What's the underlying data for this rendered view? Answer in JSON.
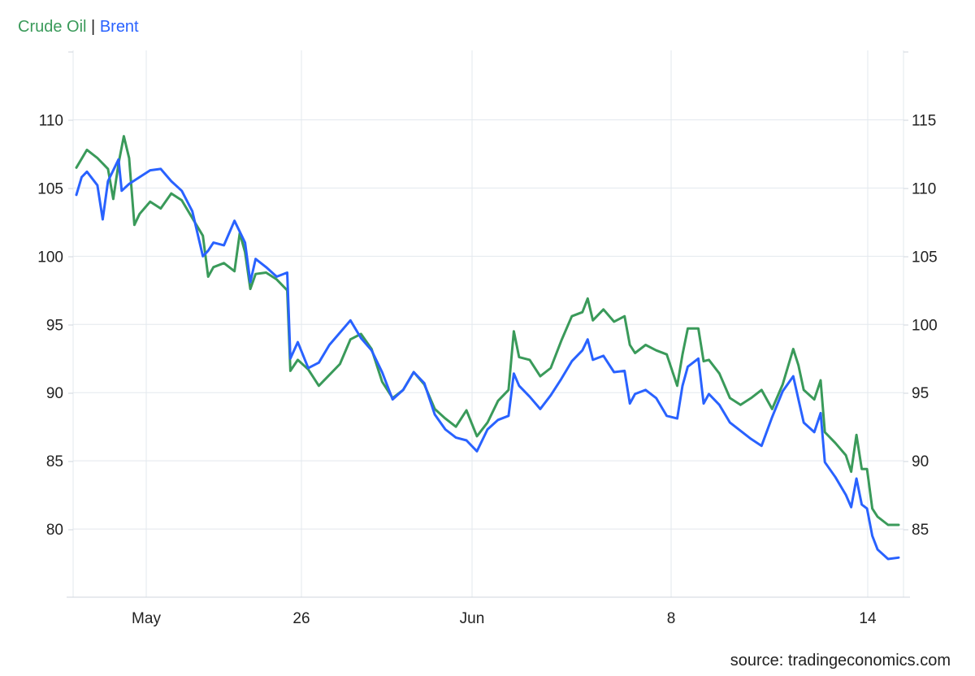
{
  "legend": {
    "sep": "|"
  },
  "source": "source: tradingeconomics.com",
  "colors": {
    "crude": "#3a9a5a",
    "brent": "#2962ff",
    "grid": "#e3e8ee"
  },
  "chart_data": {
    "type": "line",
    "x_ticks": [
      "May",
      "26",
      "Jun",
      "8",
      "14"
    ],
    "y_left_ticks": [
      80,
      85,
      90,
      95,
      100,
      105,
      110
    ],
    "y_right_ticks": [
      85,
      90,
      95,
      100,
      105,
      110,
      115
    ],
    "y_left_range": [
      75,
      110
    ],
    "y_right_range": [
      80,
      115
    ],
    "grid": true,
    "legend_position": "top-left",
    "series": [
      {
        "name": "Crude Oil",
        "axis": "left",
        "points": [
          [
            0,
            106.5
          ],
          [
            1,
            107.8
          ],
          [
            2,
            107.2
          ],
          [
            3,
            106.4
          ],
          [
            3.5,
            104.2
          ],
          [
            4,
            106.8
          ],
          [
            4.5,
            108.8
          ],
          [
            5,
            107.2
          ],
          [
            5.5,
            102.3
          ],
          [
            6,
            103.1
          ],
          [
            7,
            104
          ],
          [
            8,
            103.5
          ],
          [
            9,
            104.6
          ],
          [
            10,
            104.1
          ],
          [
            11,
            102.8
          ],
          [
            12,
            101.5
          ],
          [
            12.5,
            98.5
          ],
          [
            13,
            99.2
          ],
          [
            14,
            99.5
          ],
          [
            15,
            98.9
          ],
          [
            15.5,
            101.7
          ],
          [
            16,
            100.3
          ],
          [
            16.5,
            97.6
          ],
          [
            17,
            98.7
          ],
          [
            18,
            98.8
          ],
          [
            19,
            98.3
          ],
          [
            20,
            97.5
          ],
          [
            20.3,
            91.6
          ],
          [
            21,
            92.4
          ],
          [
            22,
            91.7
          ],
          [
            23,
            90.5
          ],
          [
            24,
            91.3
          ],
          [
            25,
            92.1
          ],
          [
            26,
            93.9
          ],
          [
            27,
            94.3
          ],
          [
            28,
            93.2
          ],
          [
            29,
            90.8
          ],
          [
            30,
            89.6
          ],
          [
            31,
            90.2
          ],
          [
            32,
            91.5
          ],
          [
            33,
            90.6
          ],
          [
            34,
            88.8
          ],
          [
            35,
            88.1
          ],
          [
            36,
            87.5
          ],
          [
            37,
            88.7
          ],
          [
            38,
            86.8
          ],
          [
            39,
            87.8
          ],
          [
            40,
            89.4
          ],
          [
            41,
            90.2
          ],
          [
            41.5,
            94.5
          ],
          [
            42,
            92.6
          ],
          [
            43,
            92.4
          ],
          [
            44,
            91.2
          ],
          [
            45,
            91.8
          ],
          [
            46,
            93.8
          ],
          [
            47,
            95.6
          ],
          [
            48,
            95.9
          ],
          [
            48.5,
            96.9
          ],
          [
            49,
            95.3
          ],
          [
            50,
            96.1
          ],
          [
            51,
            95.2
          ],
          [
            52,
            95.6
          ],
          [
            52.5,
            93.5
          ],
          [
            53,
            92.9
          ],
          [
            54,
            93.5
          ],
          [
            55,
            93.1
          ],
          [
            56,
            92.8
          ],
          [
            57,
            90.5
          ],
          [
            57.5,
            92.8
          ],
          [
            58,
            94.7
          ],
          [
            59,
            94.7
          ],
          [
            59.5,
            92.3
          ],
          [
            60,
            92.4
          ],
          [
            61,
            91.4
          ],
          [
            62,
            89.6
          ],
          [
            63,
            89.1
          ],
          [
            64,
            89.6
          ],
          [
            65,
            90.2
          ],
          [
            66,
            88.8
          ],
          [
            67,
            90.6
          ],
          [
            68,
            93.2
          ],
          [
            68.5,
            92.0
          ],
          [
            69,
            90.2
          ],
          [
            70,
            89.5
          ],
          [
            70.6,
            90.9
          ],
          [
            71,
            87.1
          ],
          [
            72,
            86.3
          ],
          [
            73,
            85.4
          ],
          [
            73.5,
            84.2
          ],
          [
            74,
            86.9
          ],
          [
            74.5,
            84.4
          ],
          [
            75,
            84.4
          ],
          [
            75.5,
            81.5
          ],
          [
            76,
            80.9
          ],
          [
            77,
            80.3
          ],
          [
            78,
            80.3
          ]
        ]
      },
      {
        "name": "Brent",
        "axis": "right",
        "points": [
          [
            0,
            109.5
          ],
          [
            0.5,
            110.8
          ],
          [
            1,
            111.2
          ],
          [
            2,
            110.2
          ],
          [
            2.5,
            107.7
          ],
          [
            3,
            110.5
          ],
          [
            4,
            112.1
          ],
          [
            4.3,
            109.8
          ],
          [
            5,
            110.3
          ],
          [
            6,
            110.8
          ],
          [
            7,
            111.3
          ],
          [
            8,
            111.4
          ],
          [
            9,
            110.5
          ],
          [
            10,
            109.8
          ],
          [
            11,
            108.3
          ],
          [
            12,
            105
          ],
          [
            12.5,
            105.4
          ],
          [
            13,
            106
          ],
          [
            14,
            105.8
          ],
          [
            15,
            107.6
          ],
          [
            16,
            106
          ],
          [
            16.5,
            103.1
          ],
          [
            17,
            104.8
          ],
          [
            18,
            104.2
          ],
          [
            19,
            103.5
          ],
          [
            20,
            103.8
          ],
          [
            20.3,
            97.5
          ],
          [
            21,
            98.7
          ],
          [
            22,
            96.8
          ],
          [
            23,
            97.2
          ],
          [
            24,
            98.5
          ],
          [
            25,
            99.4
          ],
          [
            26,
            100.3
          ],
          [
            27,
            99
          ],
          [
            28,
            98.1
          ],
          [
            29,
            96.5
          ],
          [
            30,
            94.5
          ],
          [
            31,
            95.2
          ],
          [
            32,
            96.5
          ],
          [
            33,
            95.7
          ],
          [
            34,
            93.4
          ],
          [
            35,
            92.3
          ],
          [
            36,
            91.7
          ],
          [
            37,
            91.5
          ],
          [
            38,
            90.7
          ],
          [
            39,
            92.3
          ],
          [
            40,
            93
          ],
          [
            41,
            93.3
          ],
          [
            41.5,
            96.4
          ],
          [
            42,
            95.5
          ],
          [
            43,
            94.7
          ],
          [
            44,
            93.8
          ],
          [
            45,
            94.8
          ],
          [
            46,
            96
          ],
          [
            47,
            97.3
          ],
          [
            48,
            98.1
          ],
          [
            48.5,
            98.9
          ],
          [
            49,
            97.4
          ],
          [
            50,
            97.7
          ],
          [
            51,
            96.5
          ],
          [
            52,
            96.6
          ],
          [
            52.5,
            94.2
          ],
          [
            53,
            94.9
          ],
          [
            54,
            95.2
          ],
          [
            55,
            94.6
          ],
          [
            56,
            93.3
          ],
          [
            57,
            93.1
          ],
          [
            57.5,
            95.5
          ],
          [
            58,
            96.9
          ],
          [
            59,
            97.5
          ],
          [
            59.5,
            94.2
          ],
          [
            60,
            94.9
          ],
          [
            61,
            94.1
          ],
          [
            62,
            92.8
          ],
          [
            63,
            92.2
          ],
          [
            64,
            91.6
          ],
          [
            65,
            91.1
          ],
          [
            66,
            93.2
          ],
          [
            67,
            95.1
          ],
          [
            68,
            96.2
          ],
          [
            68.5,
            94.5
          ],
          [
            69,
            92.8
          ],
          [
            70,
            92.1
          ],
          [
            70.6,
            93.5
          ],
          [
            71,
            89.9
          ],
          [
            72,
            88.8
          ],
          [
            73,
            87.5
          ],
          [
            73.5,
            86.6
          ],
          [
            74,
            88.7
          ],
          [
            74.5,
            86.8
          ],
          [
            75,
            86.5
          ],
          [
            75.5,
            84.5
          ],
          [
            76,
            83.5
          ],
          [
            77,
            82.8
          ],
          [
            78,
            82.9
          ]
        ]
      }
    ]
  }
}
